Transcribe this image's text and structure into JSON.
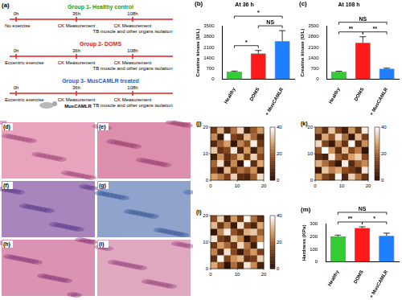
{
  "diagram": {
    "panel": "(a)",
    "treatment": "MusCAMLR",
    "groups": [
      {
        "title": "Group 1- Healthy control",
        "color": "#1a9e1a",
        "times": [
          "0h",
          "36h",
          "108h"
        ],
        "events": [
          [
            "No exercise"
          ],
          [
            "CK Measurement"
          ],
          [
            "CK Measurement",
            "TB muscle and other organs isolation"
          ]
        ]
      },
      {
        "title": "Group 2- DOMS",
        "color": "#e01b1b",
        "times": [
          "0h",
          "36h",
          "108h"
        ],
        "events": [
          [
            "Eccentric exercise"
          ],
          [
            "CK Measurement"
          ],
          [
            "CK Measurement",
            "TB muscle and other organs isolation"
          ]
        ]
      },
      {
        "title": "Group 3- MusCAMLR treated",
        "color": "#1c5fd6",
        "times": [
          "0h",
          "36h",
          "108h"
        ],
        "events": [
          [
            "Eccentric exercise"
          ],
          [
            "CK Measurement"
          ],
          [
            "CK Measurement",
            "TB muscle and other organs isolation"
          ]
        ]
      }
    ]
  },
  "images": [
    {
      "panel": "(d)"
    },
    {
      "panel": "(e)"
    },
    {
      "panel": "(f)"
    },
    {
      "panel": "(g)"
    },
    {
      "panel": "(h)"
    },
    {
      "panel": "(i)"
    }
  ],
  "chart_data": [
    {
      "panel": "(b)",
      "type": "bar",
      "title": "At 36 h",
      "y_label": "Creatine kinase (U/L)",
      "categories": [
        "Healthy",
        "DOMS",
        "+ MusCAMLR"
      ],
      "values": [
        500,
        1700,
        2500
      ],
      "errors": [
        50,
        200,
        700
      ],
      "colors": [
        "#33cc33",
        "#ff1a1a",
        "#1e7fff"
      ],
      "ylim": [
        0,
        3500
      ],
      "yticks": [
        0,
        700,
        1400,
        2100,
        2800,
        3500
      ],
      "grid": false,
      "significance": [
        {
          "from": "Healthy",
          "to": "DOMS",
          "label": "*"
        },
        {
          "from": "DOMS",
          "to": "+ MusCAMLR",
          "label": "NS"
        },
        {
          "from": "Healthy",
          "to": "+ MusCAMLR",
          "label": "*"
        }
      ]
    },
    {
      "panel": "(c)",
      "type": "bar",
      "title": "At 108 h",
      "y_label": "Creatine kinase (U/L)",
      "categories": [
        "Healthy",
        "DOMS",
        "+ MusCAMLR"
      ],
      "values": [
        500,
        2400,
        700
      ],
      "errors": [
        40,
        400,
        40
      ],
      "colors": [
        "#33cc33",
        "#ff1a1a",
        "#1e7fff"
      ],
      "ylim": [
        0,
        3500
      ],
      "yticks": [
        0,
        700,
        1400,
        2100,
        2800,
        3500
      ],
      "grid": false,
      "significance": [
        {
          "from": "Healthy",
          "to": "DOMS",
          "label": "**"
        },
        {
          "from": "DOMS",
          "to": "+ MusCAMLR",
          "label": "**"
        },
        {
          "from": "Healthy",
          "to": "+ MusCAMLR",
          "label": "NS"
        }
      ]
    },
    {
      "panel": "(j)",
      "type": "heatmap",
      "xlim": [
        0,
        20
      ],
      "xticks": [
        0,
        10,
        20
      ],
      "ylim": [
        0,
        20
      ],
      "yticks": [
        0,
        10,
        20
      ],
      "colorbar": {
        "range": [
          0,
          40
        ],
        "ticks": [
          0,
          20,
          40
        ]
      },
      "cells": [
        [
          12,
          30,
          8,
          22,
          35,
          5,
          18,
          27
        ],
        [
          25,
          3,
          40,
          14,
          9,
          31,
          20,
          6
        ],
        [
          7,
          19,
          28,
          2,
          24,
          16,
          38,
          11
        ],
        [
          33,
          10,
          15,
          37,
          6,
          27,
          4,
          21
        ],
        [
          4,
          26,
          9,
          18,
          30,
          12,
          34,
          15
        ],
        [
          20,
          36,
          5,
          25,
          1,
          39,
          8,
          29
        ],
        [
          14,
          2,
          31,
          11,
          22,
          17,
          26,
          3
        ],
        [
          28,
          23,
          13,
          34,
          8,
          6,
          19,
          36
        ]
      ]
    },
    {
      "panel": "(k)",
      "type": "heatmap",
      "xlim": [
        0,
        20
      ],
      "xticks": [
        0,
        10,
        20
      ],
      "ylim": [
        0,
        20
      ],
      "yticks": [
        0,
        10,
        20
      ],
      "colorbar": {
        "range": [
          0,
          40
        ],
        "ticks": [
          0,
          20,
          40
        ]
      },
      "cells": [
        [
          22,
          9,
          33,
          15,
          4,
          27,
          11,
          38
        ],
        [
          6,
          29,
          17,
          36,
          21,
          2,
          31,
          13
        ],
        [
          35,
          14,
          3,
          24,
          10,
          39,
          7,
          26
        ],
        [
          18,
          40,
          26,
          8,
          32,
          15,
          23,
          1
        ],
        [
          9,
          5,
          37,
          19,
          13,
          28,
          34,
          16
        ],
        [
          30,
          21,
          12,
          2,
          38,
          7,
          19,
          25
        ],
        [
          3,
          33,
          24,
          29,
          16,
          11,
          5,
          37
        ],
        [
          27,
          15,
          8,
          39,
          6,
          34,
          22,
          10
        ]
      ]
    },
    {
      "panel": "(l)",
      "type": "heatmap",
      "xlim": [
        0,
        20
      ],
      "xticks": [
        0,
        10,
        20
      ],
      "ylim": [
        0,
        20
      ],
      "yticks": [
        0,
        10,
        20
      ],
      "colorbar": {
        "range": [
          0,
          40
        ],
        "ticks": [
          0,
          20,
          40
        ]
      },
      "cells": [
        [
          16,
          34,
          5,
          27,
          12,
          39,
          21,
          8
        ],
        [
          31,
          10,
          23,
          3,
          36,
          14,
          6,
          29
        ],
        [
          2,
          25,
          38,
          17,
          9,
          30,
          33,
          19
        ],
        [
          37,
          13,
          7,
          32,
          24,
          1,
          15,
          26
        ],
        [
          11,
          28,
          20,
          10,
          35,
          22,
          4,
          40
        ],
        [
          24,
          6,
          36,
          15,
          3,
          18,
          27,
          13
        ],
        [
          8,
          39,
          14,
          26,
          31,
          9,
          12,
          34
        ],
        [
          29,
          17,
          1,
          21,
          7,
          37,
          25,
          5
        ]
      ]
    },
    {
      "panel": "(m)",
      "type": "bar",
      "y_label": "Hardness (KPa)",
      "categories": [
        "Healthy",
        "DOMS",
        "+ MusCAMLR"
      ],
      "values": [
        200,
        265,
        205
      ],
      "errors": [
        10,
        10,
        20
      ],
      "colors": [
        "#33cc33",
        "#ff1a1a",
        "#1e7fff"
      ],
      "ylim": [
        0,
        300
      ],
      "yticks": [
        0,
        100,
        200,
        300
      ],
      "grid": false,
      "significance": [
        {
          "from": "Healthy",
          "to": "DOMS",
          "label": "**"
        },
        {
          "from": "DOMS",
          "to": "+ MusCAMLR",
          "label": "*"
        },
        {
          "from": "Healthy",
          "to": "+ MusCAMLR",
          "label": "NS"
        }
      ]
    }
  ]
}
